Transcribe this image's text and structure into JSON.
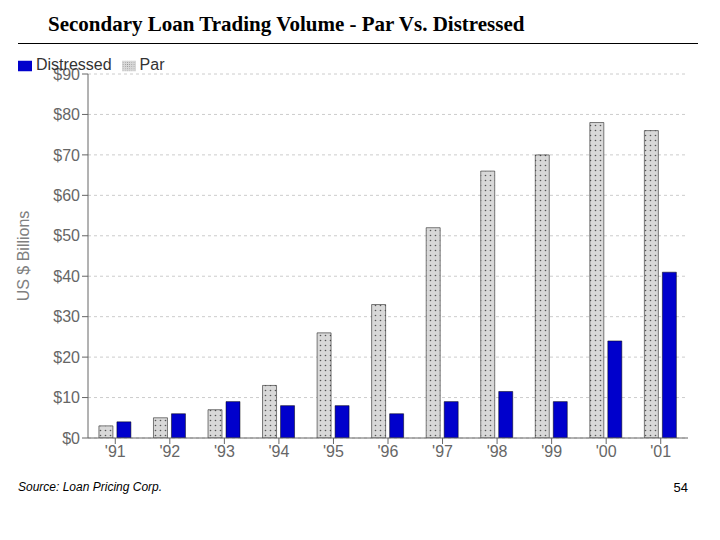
{
  "chart_data": {
    "type": "bar",
    "title": "Secondary Loan Trading Volume - Par Vs. Distressed",
    "y_label": "US $ Billions",
    "annotations": [
      "Source: Loan Pricing Corp.",
      "54"
    ],
    "categories": [
      "'91",
      "'92",
      "'93",
      "'94",
      "'95",
      "'96",
      "'97",
      "'98",
      "'99",
      "'00",
      "'01"
    ],
    "series": [
      {
        "name": "Par",
        "color": "#d8d8d8",
        "values": [
          3,
          5,
          7,
          13,
          26,
          33,
          52,
          66,
          70,
          78,
          76
        ]
      },
      {
        "name": "Distressed",
        "color": "#0000cc",
        "values": [
          4,
          6,
          9,
          8,
          8,
          6,
          9,
          11.5,
          9,
          24,
          41
        ]
      }
    ],
    "ylim": [
      0,
      90
    ],
    "yticks": [
      {
        "value": 0,
        "label": "$0"
      },
      {
        "value": 10,
        "label": "$10"
      },
      {
        "value": 20,
        "label": "$20"
      },
      {
        "value": 30,
        "label": "$30"
      },
      {
        "value": 40,
        "label": "$40"
      },
      {
        "value": 50,
        "label": "$50"
      },
      {
        "value": 60,
        "label": "$60"
      },
      {
        "value": 70,
        "label": "$70"
      },
      {
        "value": 80,
        "label": "$80"
      },
      {
        "value": 90,
        "label": "$90"
      }
    ],
    "grid": true,
    "legend": "upper left"
  }
}
